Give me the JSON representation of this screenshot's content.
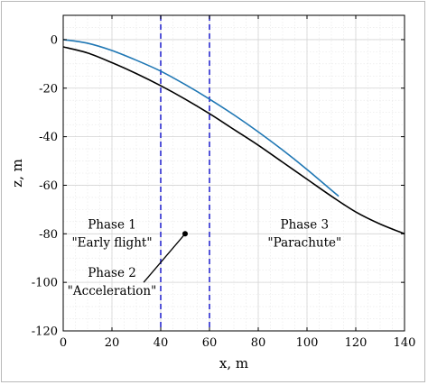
{
  "chart_data": {
    "type": "line",
    "xlabel": "x, m",
    "ylabel": "z, m",
    "xlim": [
      0,
      140
    ],
    "ylim": [
      -120,
      10
    ],
    "x_ticks": [
      0,
      20,
      40,
      60,
      80,
      100,
      120,
      140
    ],
    "y_ticks": [
      0,
      -20,
      -40,
      -60,
      -80,
      -100,
      -120
    ],
    "x_minor_step": 5,
    "y_minor_step": 5,
    "grid": true,
    "series": [
      {
        "color": "#1f77b4",
        "x": [
          0,
          10,
          20,
          30,
          40,
          50,
          60,
          70,
          80,
          90,
          100,
          110,
          113
        ],
        "y": [
          0,
          -1.5,
          -4.5,
          -8.5,
          -13,
          -18.5,
          -24.5,
          -31,
          -38,
          -45.5,
          -53.5,
          -62,
          -64.5
        ]
      },
      {
        "color": "#000000",
        "x": [
          0,
          10,
          20,
          30,
          40,
          50,
          60,
          70,
          80,
          90,
          100,
          110,
          120,
          130,
          140
        ],
        "y": [
          -3,
          -5.5,
          -9.5,
          -14,
          -19,
          -24.5,
          -30.5,
          -37,
          -43.5,
          -50.5,
          -57.5,
          -64.5,
          -71,
          -76,
          -80
        ]
      }
    ],
    "vlines": [
      {
        "x": 40,
        "color": "#2a2ad0"
      },
      {
        "x": 60,
        "color": "#2a2ad0"
      }
    ],
    "annotations": [
      {
        "lines": [
          "Phase 1",
          "\"Early flight\""
        ],
        "x": 20,
        "y": -80
      },
      {
        "lines": [
          "Phase 2",
          "\"Acceleration\""
        ],
        "x": 20,
        "y": -100
      },
      {
        "lines": [
          "Phase 3",
          "\"Parachute\""
        ],
        "x": 99,
        "y": -80
      }
    ],
    "pointer": {
      "from": [
        33,
        -100
      ],
      "to": [
        50,
        -80
      ]
    }
  }
}
